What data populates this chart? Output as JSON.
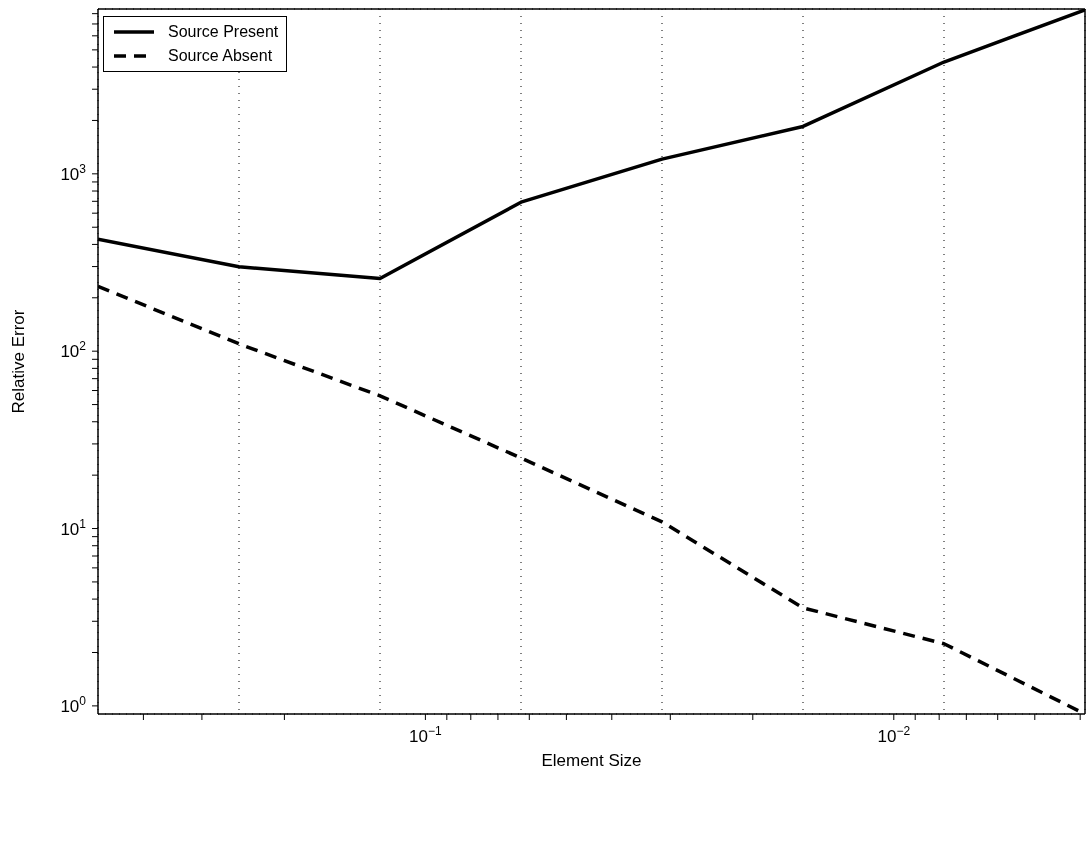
{
  "chart_data": {
    "type": "line",
    "xlabel": "Element Size",
    "ylabel": "Relative Error",
    "x": [
      0.5,
      0.25,
      0.125,
      0.0625,
      0.03125,
      0.015625,
      0.0078125,
      0.00390625
    ],
    "series": [
      {
        "name": "Source Present",
        "color": "#000000",
        "line_style": "solid",
        "values": [
          428,
          299,
          257,
          692,
          1210,
          1850,
          4270,
          8400
        ]
      },
      {
        "name": "Source Absent",
        "color": "#000000",
        "line_style": "dashed",
        "values": [
          232,
          110,
          56,
          25,
          10.9,
          3.57,
          2.24,
          0.9
        ]
      }
    ],
    "log": "xy",
    "xlim": [
      0.5,
      0.00390625
    ],
    "ylim": [
      0.9,
      8500
    ],
    "xticks": [
      {
        "value": 0.4,
        "label": null
      },
      {
        "value": 0.3,
        "label": null
      },
      {
        "value": 0.2,
        "label": null
      },
      {
        "value": 0.1,
        "label": "10$^{−1}$"
      },
      {
        "value": 0.09,
        "label": null
      },
      {
        "value": 0.08,
        "label": null
      },
      {
        "value": 0.07,
        "label": null
      },
      {
        "value": 0.06,
        "label": null
      },
      {
        "value": 0.05,
        "label": null
      },
      {
        "value": 0.04,
        "label": null
      },
      {
        "value": 0.03,
        "label": null
      },
      {
        "value": 0.02,
        "label": null
      },
      {
        "value": 0.01,
        "label": "10$^{−2}$"
      },
      {
        "value": 0.009,
        "label": null
      },
      {
        "value": 0.008,
        "label": null
      },
      {
        "value": 0.007,
        "label": null
      },
      {
        "value": 0.006,
        "label": null
      },
      {
        "value": 0.005,
        "label": null
      },
      {
        "value": 0.004,
        "label": null
      }
    ],
    "yticks": [
      {
        "value": 1,
        "label": "10$^{0}$"
      },
      {
        "value": 2,
        "label": null
      },
      {
        "value": 3,
        "label": null
      },
      {
        "value": 4,
        "label": null
      },
      {
        "value": 5,
        "label": null
      },
      {
        "value": 6,
        "label": null
      },
      {
        "value": 7,
        "label": null
      },
      {
        "value": 8,
        "label": null
      },
      {
        "value": 9,
        "label": null
      },
      {
        "value": 10,
        "label": "10$^{1}$"
      },
      {
        "value": 20,
        "label": null
      },
      {
        "value": 30,
        "label": null
      },
      {
        "value": 40,
        "label": null
      },
      {
        "value": 50,
        "label": null
      },
      {
        "value": 60,
        "label": null
      },
      {
        "value": 70,
        "label": null
      },
      {
        "value": 80,
        "label": null
      },
      {
        "value": 90,
        "label": null
      },
      {
        "value": 100,
        "label": "10$^{2}$"
      },
      {
        "value": 200,
        "label": null
      },
      {
        "value": 300,
        "label": null
      },
      {
        "value": 400,
        "label": null
      },
      {
        "value": 500,
        "label": null
      },
      {
        "value": 600,
        "label": null
      },
      {
        "value": 700,
        "label": null
      },
      {
        "value": 800,
        "label": null
      },
      {
        "value": 900,
        "label": null
      },
      {
        "value": 1000,
        "label": "10$^{3}$"
      },
      {
        "value": 2000,
        "label": null
      },
      {
        "value": 3000,
        "label": null
      },
      {
        "value": 4000,
        "label": null
      },
      {
        "value": 5000,
        "label": null
      },
      {
        "value": 6000,
        "label": null
      },
      {
        "value": 7000,
        "label": null
      },
      {
        "value": 8000,
        "label": null
      }
    ],
    "grid": true,
    "legend": "top left"
  }
}
